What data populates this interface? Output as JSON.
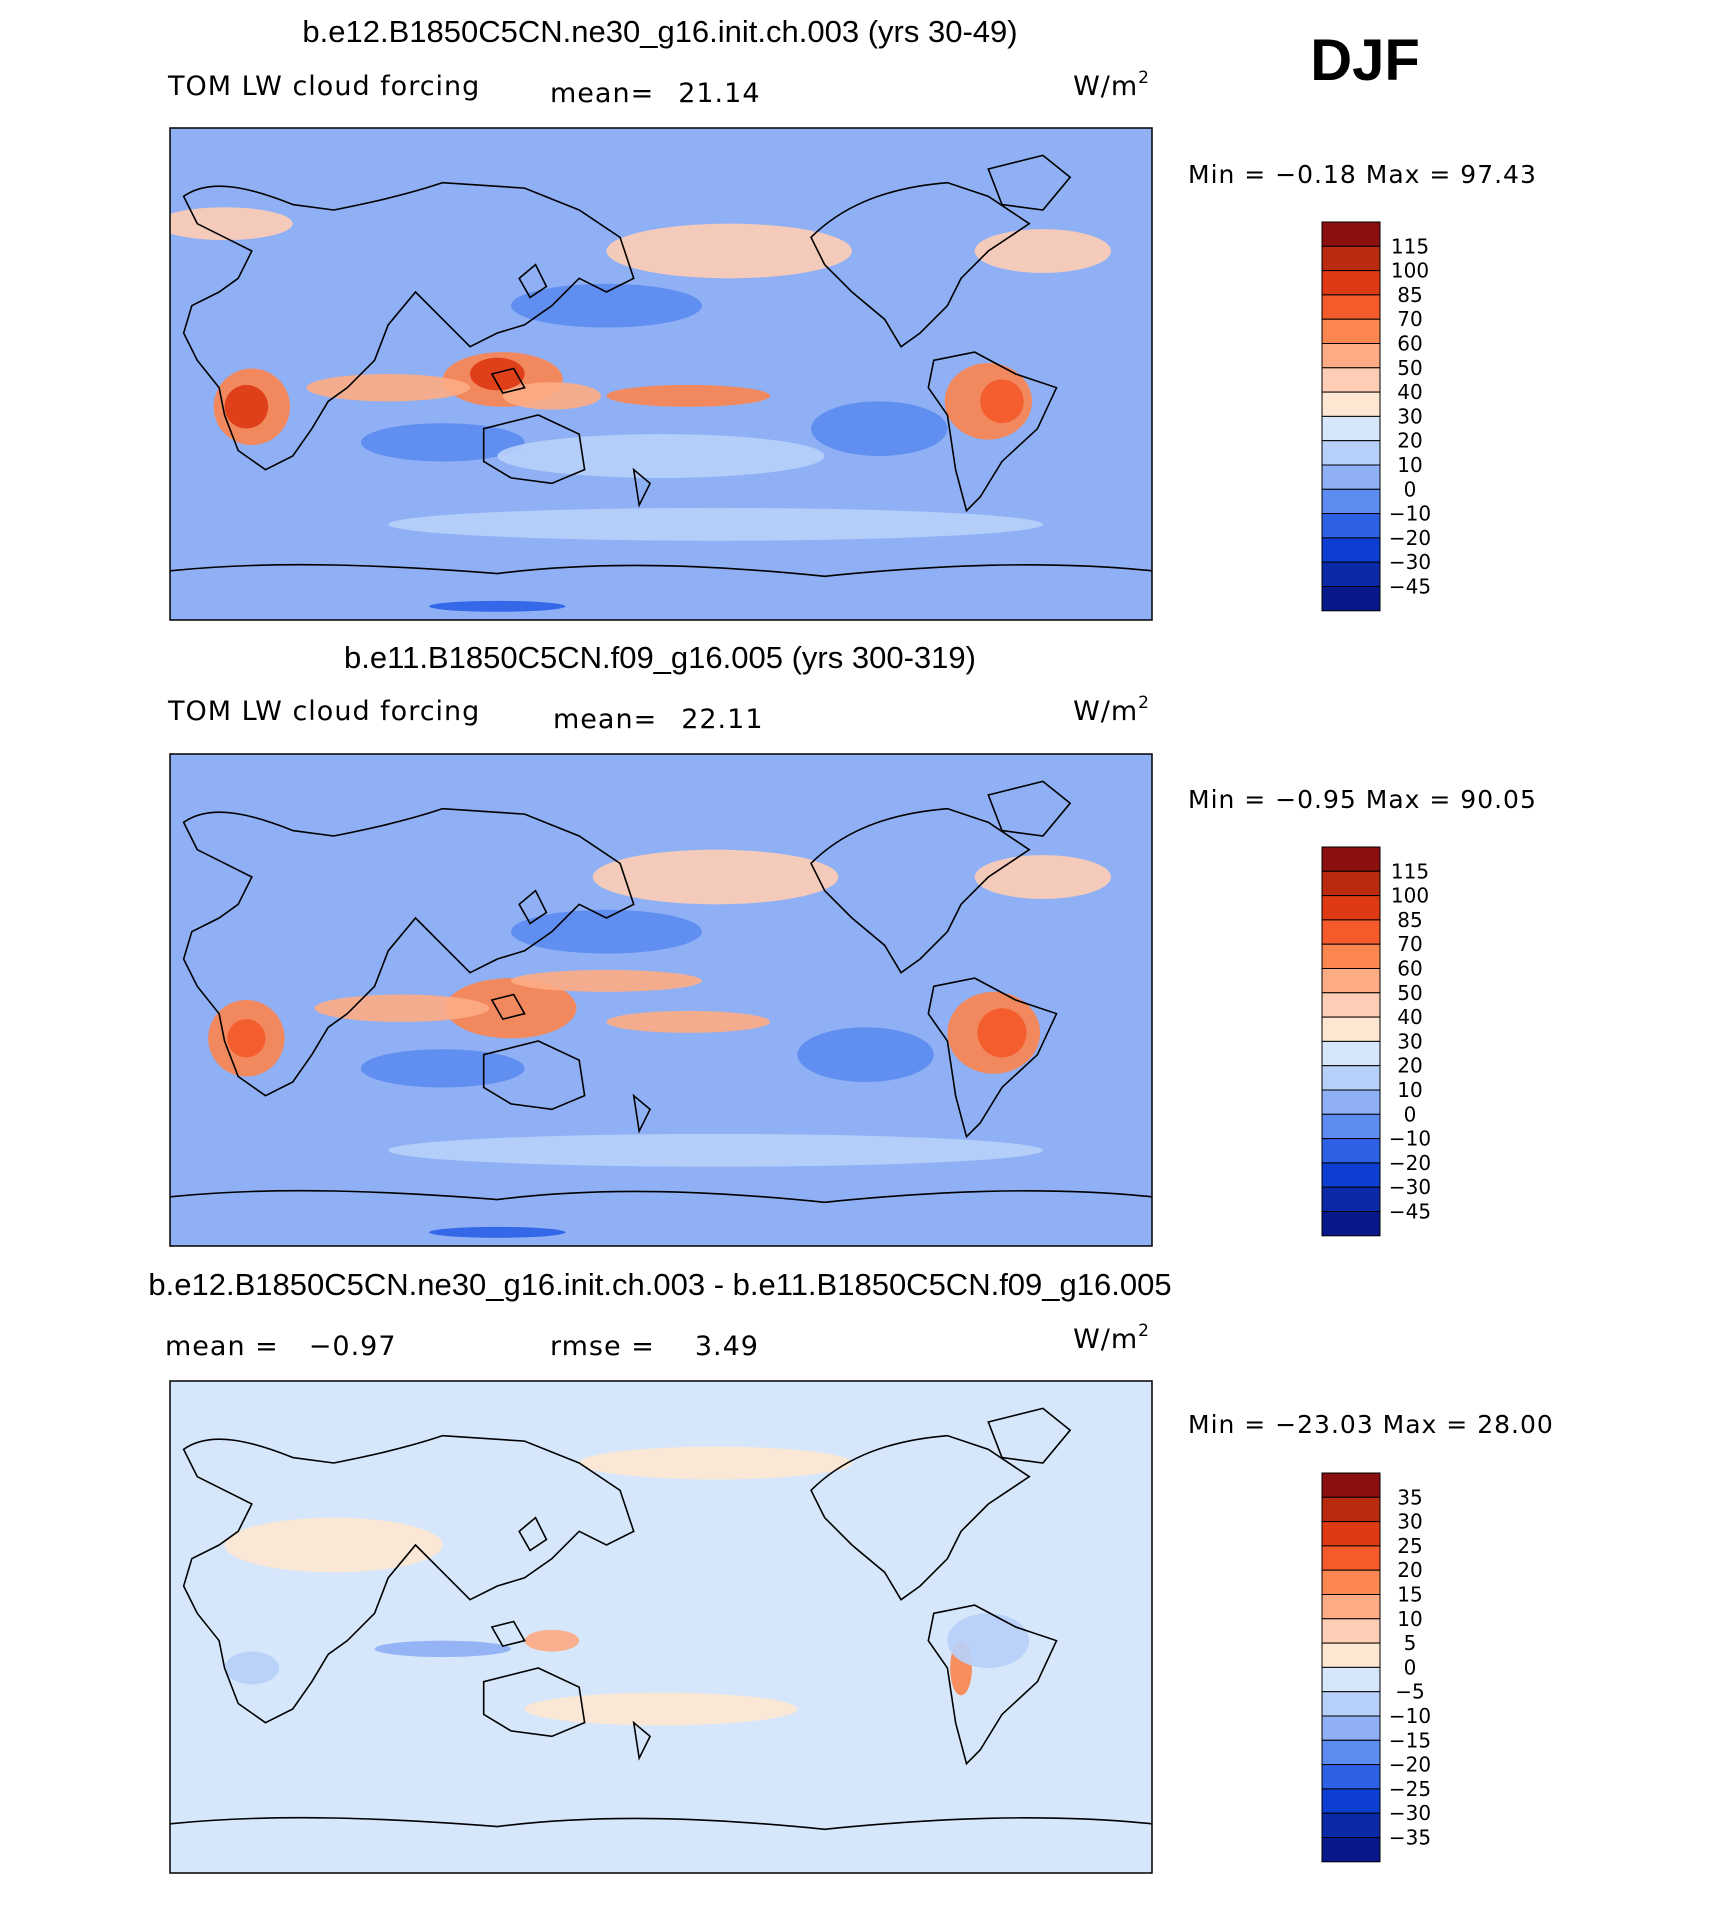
{
  "season": "DJF",
  "units": "W/m2",
  "colors": {
    "ocean_base": "#8fb0f5",
    "land_line": "#000000",
    "frame": "#000000"
  },
  "icons": [
    "coastline-map-icon"
  ],
  "chart_data": [
    {
      "type": "heatmap",
      "title": "b.e12.B1850C5CN.ne30_g16.init.ch.003 (yrs 30-49)",
      "subtitle": "TOM LW cloud forcing",
      "units": "W/m",
      "units_exp": "2",
      "stats": [
        {
          "label": "mean=",
          "value": "21.14"
        }
      ],
      "min_text": "Min =   −0.18  Max =   97.43",
      "x": "longitude 0E-360E",
      "y": "latitude 90S-90N",
      "levels": [
        "115",
        "100",
        "85",
        "70",
        "60",
        "50",
        "40",
        "30",
        "20",
        "10",
        "0",
        "−10",
        "−20",
        "−30",
        "−45"
      ],
      "colors": [
        "#8a0f0f",
        "#b92a0e",
        "#de3a14",
        "#f45a2a",
        "#fb8650",
        "#fdab85",
        "#fdcdb5",
        "#fde7d3",
        "#d6e7fb",
        "#b7d0fa",
        "#8fb0f5",
        "#5c8cf0",
        "#2d62e6",
        "#0c3ed2",
        "#0a2aa8",
        "#08188a"
      ],
      "blobs": [
        {
          "lon": 30,
          "lat": -12,
          "rx": 14,
          "ry": 14,
          "lvl": 4
        },
        {
          "lon": 28,
          "lat": -12,
          "rx": 8,
          "ry": 8,
          "lvl": 2
        },
        {
          "lon": 122,
          "lat": -2,
          "rx": 22,
          "ry": 10,
          "lvl": 4
        },
        {
          "lon": 120,
          "lat": 0,
          "rx": 10,
          "ry": 6,
          "lvl": 2
        },
        {
          "lon": 190,
          "lat": -8,
          "rx": 30,
          "ry": 4,
          "lvl": 4
        },
        {
          "lon": 80,
          "lat": -5,
          "rx": 30,
          "ry": 5,
          "lvl": 5
        },
        {
          "lon": 300,
          "lat": -10,
          "rx": 16,
          "ry": 14,
          "lvl": 4
        },
        {
          "lon": 305,
          "lat": -10,
          "rx": 8,
          "ry": 8,
          "lvl": 3
        },
        {
          "lon": 140,
          "lat": -8,
          "rx": 18,
          "ry": 5,
          "lvl": 5
        },
        {
          "lon": 205,
          "lat": 45,
          "rx": 45,
          "ry": 10,
          "lvl": 6
        },
        {
          "lon": 320,
          "lat": 45,
          "rx": 25,
          "ry": 8,
          "lvl": 6
        },
        {
          "lon": 20,
          "lat": 55,
          "rx": 25,
          "ry": 6,
          "lvl": 6
        },
        {
          "lon": 160,
          "lat": 25,
          "rx": 35,
          "ry": 8,
          "lvl": 11
        },
        {
          "lon": 100,
          "lat": -25,
          "rx": 30,
          "ry": 7,
          "lvl": 11
        },
        {
          "lon": 260,
          "lat": -20,
          "rx": 25,
          "ry": 10,
          "lvl": 11
        },
        {
          "lon": 180,
          "lat": -30,
          "rx": 60,
          "ry": 8,
          "lvl": 9
        },
        {
          "lon": 200,
          "lat": -55,
          "rx": 120,
          "ry": 6,
          "lvl": 9
        },
        {
          "lon": 120,
          "lat": -85,
          "rx": 25,
          "ry": 2,
          "lvl": 12
        }
      ]
    },
    {
      "type": "heatmap",
      "title": "b.e11.B1850C5CN.f09_g16.005 (yrs 300-319)",
      "subtitle": "TOM LW cloud forcing",
      "units": "W/m",
      "units_exp": "2",
      "stats": [
        {
          "label": "mean=",
          "value": "22.11"
        }
      ],
      "min_text": "Min =   −0.95  Max =   90.05",
      "x": "longitude 0E-360E",
      "y": "latitude 90S-90N",
      "levels": [
        "115",
        "100",
        "85",
        "70",
        "60",
        "50",
        "40",
        "30",
        "20",
        "10",
        "0",
        "−10",
        "−20",
        "−30",
        "−45"
      ],
      "colors": [
        "#8a0f0f",
        "#b92a0e",
        "#de3a14",
        "#f45a2a",
        "#fb8650",
        "#fdab85",
        "#fdcdb5",
        "#fde7d3",
        "#d6e7fb",
        "#b7d0fa",
        "#8fb0f5",
        "#5c8cf0",
        "#2d62e6",
        "#0c3ed2",
        "#0a2aa8",
        "#08188a"
      ],
      "blobs": [
        {
          "lon": 28,
          "lat": -14,
          "rx": 14,
          "ry": 14,
          "lvl": 4
        },
        {
          "lon": 28,
          "lat": -14,
          "rx": 7,
          "ry": 7,
          "lvl": 3
        },
        {
          "lon": 125,
          "lat": -3,
          "rx": 24,
          "ry": 11,
          "lvl": 4
        },
        {
          "lon": 190,
          "lat": -8,
          "rx": 30,
          "ry": 4,
          "lvl": 5
        },
        {
          "lon": 85,
          "lat": -3,
          "rx": 32,
          "ry": 5,
          "lvl": 5
        },
        {
          "lon": 302,
          "lat": -12,
          "rx": 17,
          "ry": 15,
          "lvl": 4
        },
        {
          "lon": 305,
          "lat": -12,
          "rx": 9,
          "ry": 9,
          "lvl": 3
        },
        {
          "lon": 160,
          "lat": 7,
          "rx": 35,
          "ry": 4,
          "lvl": 5
        },
        {
          "lon": 200,
          "lat": 45,
          "rx": 45,
          "ry": 10,
          "lvl": 6
        },
        {
          "lon": 320,
          "lat": 45,
          "rx": 25,
          "ry": 8,
          "lvl": 6
        },
        {
          "lon": 160,
          "lat": 25,
          "rx": 35,
          "ry": 8,
          "lvl": 11
        },
        {
          "lon": 100,
          "lat": -25,
          "rx": 30,
          "ry": 7,
          "lvl": 11
        },
        {
          "lon": 255,
          "lat": -20,
          "rx": 25,
          "ry": 10,
          "lvl": 11
        },
        {
          "lon": 200,
          "lat": -55,
          "rx": 120,
          "ry": 6,
          "lvl": 9
        },
        {
          "lon": 120,
          "lat": -85,
          "rx": 25,
          "ry": 2,
          "lvl": 12
        }
      ]
    },
    {
      "type": "heatmap",
      "title": "b.e12.B1850C5CN.ne30_g16.init.ch.003 - b.e11.B1850C5CN.f09_g16.005",
      "subtitle": "",
      "units": "W/m",
      "units_exp": "2",
      "stats": [
        {
          "label": "mean =",
          "value": "−0.97"
        },
        {
          "label": "rmse =",
          "value": "3.49"
        }
      ],
      "min_text": "Min = −23.03  Max =   28.00",
      "x": "longitude 0E-360E",
      "y": "latitude 90S-90N",
      "levels": [
        "35",
        "30",
        "25",
        "20",
        "15",
        "10",
        "5",
        "0",
        "−5",
        "−10",
        "−15",
        "−20",
        "−25",
        "−30",
        "−35"
      ],
      "colors": [
        "#8a0f0f",
        "#b92a0e",
        "#de3a14",
        "#f45a2a",
        "#fb8650",
        "#fdab85",
        "#fdcdb5",
        "#fde7d3",
        "#d6e7fb",
        "#b7d0fa",
        "#8fb0f5",
        "#5c8cf0",
        "#2d62e6",
        "#0c3ed2",
        "#0a2aa8",
        "#08188a"
      ],
      "blobs": [
        {
          "lon": 140,
          "lat": -5,
          "rx": 10,
          "ry": 4,
          "lvl": 5
        },
        {
          "lon": 290,
          "lat": -15,
          "rx": 4,
          "ry": 10,
          "lvl": 4
        },
        {
          "lon": 100,
          "lat": -8,
          "rx": 25,
          "ry": 3,
          "lvl": 10
        },
        {
          "lon": 30,
          "lat": -15,
          "rx": 10,
          "ry": 6,
          "lvl": 9
        },
        {
          "lon": 300,
          "lat": -5,
          "rx": 15,
          "ry": 10,
          "lvl": 9
        },
        {
          "lon": 180,
          "lat": -30,
          "rx": 50,
          "ry": 6,
          "lvl": 7
        },
        {
          "lon": 60,
          "lat": 30,
          "rx": 40,
          "ry": 10,
          "lvl": 7
        },
        {
          "lon": 200,
          "lat": 60,
          "rx": 50,
          "ry": 6,
          "lvl": 7
        }
      ]
    }
  ]
}
